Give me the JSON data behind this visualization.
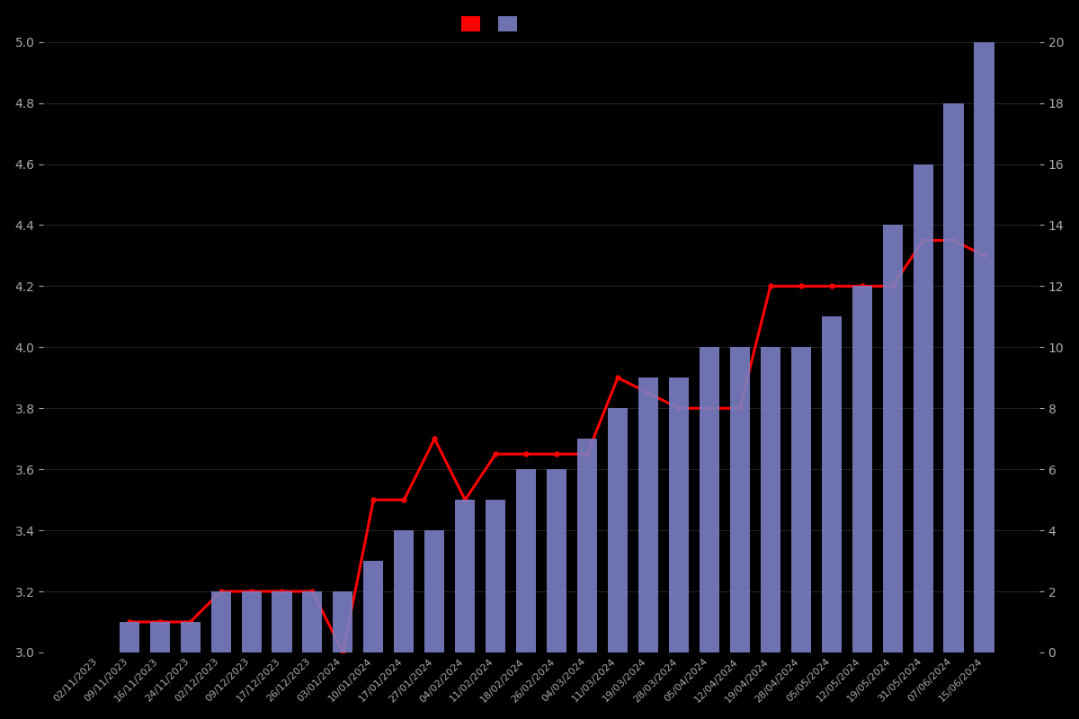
{
  "dates": [
    "02/11/2023",
    "09/11/2023",
    "16/11/2023",
    "24/11/2023",
    "02/12/2023",
    "09/12/2023",
    "17/12/2023",
    "26/12/2023",
    "03/01/2024",
    "10/01/2024",
    "17/01/2024",
    "27/01/2024",
    "04/02/2024",
    "11/02/2024",
    "18/02/2024",
    "26/02/2024",
    "04/03/2024",
    "11/03/2024",
    "19/03/2024",
    "28/03/2024",
    "05/04/2024",
    "12/04/2024",
    "19/04/2024",
    "28/04/2024",
    "05/05/2024",
    "12/05/2024",
    "19/05/2024",
    "31/05/2024",
    "07/06/2024",
    "15/06/2024"
  ],
  "bar_values": [
    0,
    1,
    1,
    1,
    2,
    2,
    2,
    2,
    2,
    3,
    4,
    4,
    5,
    5,
    6,
    6,
    7,
    8,
    9,
    9,
    10,
    10,
    10,
    10,
    11,
    12,
    14,
    16,
    18,
    20
  ],
  "line_values": [
    null,
    3.1,
    3.1,
    3.1,
    3.2,
    3.2,
    3.2,
    3.2,
    3.0,
    3.5,
    3.5,
    3.7,
    3.5,
    3.65,
    3.65,
    3.65,
    3.65,
    3.9,
    3.85,
    3.8,
    3.8,
    3.8,
    4.2,
    4.2,
    4.2,
    4.2,
    4.2,
    4.35,
    4.35,
    4.3
  ],
  "bar_color": "#7b7fc4",
  "line_color": "#ff0000",
  "background_color": "#000000",
  "text_color": "#aaaaaa",
  "ylim_left": [
    3.0,
    5.0
  ],
  "ylim_right": [
    0,
    20
  ],
  "yticks_left": [
    3.0,
    3.2,
    3.4,
    3.6,
    3.8,
    4.0,
    4.2,
    4.4,
    4.6,
    4.8,
    5.0
  ],
  "yticks_right": [
    0,
    2,
    4,
    6,
    8,
    10,
    12,
    14,
    16,
    18,
    20
  ]
}
